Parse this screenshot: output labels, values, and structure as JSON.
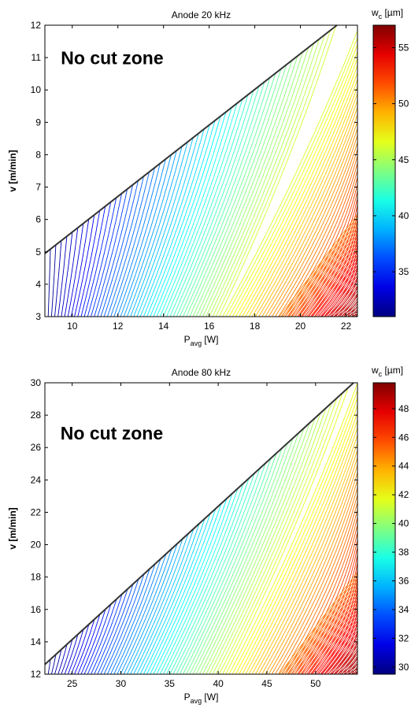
{
  "chart_data": [
    {
      "type": "contour",
      "title": "Anode 20 kHz",
      "xlabel_main": "P",
      "xlabel_sub": "avg",
      "xlabel_unit": " [W]",
      "ylabel": "v [m/min]",
      "xlim": [
        8.8,
        22.5
      ],
      "ylim": [
        3,
        12
      ],
      "xticks": [
        10,
        12,
        14,
        16,
        18,
        20,
        22
      ],
      "yticks": [
        3,
        4,
        5,
        6,
        7,
        8,
        9,
        10,
        11,
        12
      ],
      "boundary_line": {
        "p1": [
          8.8,
          4.95
        ],
        "p2": [
          21.6,
          12
        ]
      },
      "annotation": "No cut zone",
      "annotation_pos": [
        9.5,
        10.8
      ],
      "colorbar": {
        "title_main": "w",
        "title_sub": "c",
        "title_unit": " [µm]",
        "range": [
          31,
          57
        ],
        "ticks": [
          35,
          40,
          45,
          50,
          55
        ]
      }
    },
    {
      "type": "contour",
      "title": "Anode 80 kHz",
      "xlabel_main": "P",
      "xlabel_sub": "avg",
      "xlabel_unit": " [W]",
      "ylabel": "v [m/min]",
      "xlim": [
        22.2,
        54.3
      ],
      "ylim": [
        12,
        30
      ],
      "xticks": [
        25,
        30,
        35,
        40,
        45,
        50
      ],
      "yticks": [
        12,
        14,
        16,
        18,
        20,
        22,
        24,
        26,
        28,
        30
      ],
      "boundary_line": {
        "p1": [
          22.2,
          12.6
        ],
        "p2": [
          53.9,
          30
        ]
      },
      "annotation": "No cut zone",
      "annotation_pos": [
        23.8,
        26.5
      ],
      "colorbar": {
        "title_main": "w",
        "title_sub": "c",
        "title_unit": " [µm]",
        "range": [
          29.5,
          49.8
        ],
        "ticks": [
          30,
          32,
          34,
          36,
          38,
          40,
          42,
          44,
          46,
          48
        ]
      }
    }
  ]
}
